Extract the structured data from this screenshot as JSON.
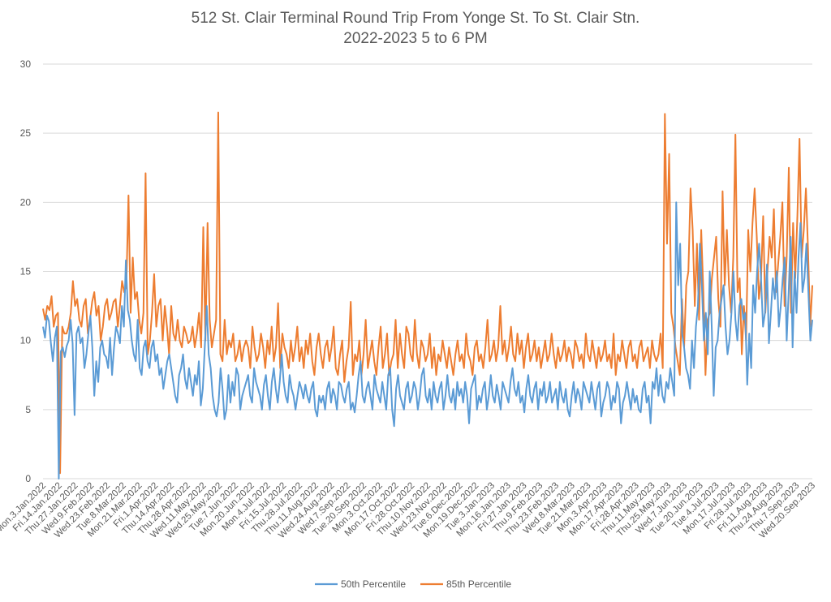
{
  "chart_data": {
    "type": "line",
    "title": "512 St. Clair Terminal Round Trip From Yonge St. To St. Clair Stn.",
    "subtitle": "2022-2023 5 to 6 PM",
    "ylim": [
      0,
      30
    ],
    "yticks": [
      0,
      5,
      10,
      15,
      20,
      25,
      30
    ],
    "grid": true,
    "legend_position": "bottom",
    "x_tick_labels": [
      "Mon.3.Jan.2022",
      "Fri.14.Jan.2022",
      "Thu.27.Jan.2022",
      "Wed.9.Feb.2022",
      "Wed.23.Feb.2022",
      "Tue.8.Mar.2022",
      "Mon.21.Mar.2022",
      "Fri.1.Apr.2022",
      "Thu.14.Apr.2022",
      "Thu.28.Apr.2022",
      "Wed.11.May.2022",
      "Wed.25.May.2022",
      "Tue.7.Jun.2022",
      "Mon.20.Jun.2022",
      "Mon.4.Jul.2022",
      "Fri.15.Jul.2022",
      "Thu.28.Jul.2022",
      "Thu.11.Aug.2022",
      "Wed.24.Aug.2022",
      "Wed.7.Sep.2022",
      "Tue.20.Sep.2022",
      "Mon.3.Oct.2022",
      "Mon.17.Oct.2022",
      "Fri.28.Oct.2022",
      "Thu.10.Nov.2022",
      "Wed.23.Nov.2022",
      "Tue.6.Dec.2022",
      "Mon.19.Dec.2022",
      "Tue.3.Jan.2023",
      "Mon.16.Jan.2023",
      "Fri.27.Jan.2023",
      "Thu.9.Feb.2023",
      "Thu.23.Feb.2023",
      "Wed.8.Mar.2023",
      "Tue.21.Mar.2023",
      "Mon.3.Apr.2023",
      "Mon.17.Apr.2023",
      "Fri.28.Apr.2023",
      "Thu.11.May.2023",
      "Thu.25.May.2023",
      "Wed.7.Jun.2023",
      "Tue.20.Jun.2023",
      "Tue.4.Jul.2023",
      "Mon.17.Jul.2023",
      "Fri.28.Jul.2023",
      "Fri.11.Aug.2023",
      "Thu.24.Aug.2023",
      "Thu.7.Sep.2023",
      "Wed.20.Sep.2023"
    ],
    "series": [
      {
        "name": "50th Percentile",
        "color": "#5B9BD5",
        "values": [
          11.0,
          10.2,
          11.8,
          11.4,
          9.8,
          8.5,
          10.2,
          11.0,
          0,
          9.2,
          9.5,
          8.8,
          9.6,
          10.0,
          11.5,
          9.8,
          4.6,
          10.5,
          11.0,
          9.8,
          10.2,
          8.0,
          9.0,
          10.5,
          11.8,
          9.5,
          6.0,
          8.5,
          7.0,
          9.5,
          10.0,
          9.0,
          8.8,
          8.0,
          10.2,
          7.5,
          9.5,
          11.0,
          10.5,
          9.8,
          12.5,
          11.0,
          15.8,
          12.2,
          11.5,
          10.0,
          9.0,
          8.5,
          11.5,
          8.0,
          7.5,
          9.5,
          10.0,
          8.5,
          8.0,
          9.5,
          10.0,
          8.5,
          9.0,
          7.5,
          8.0,
          6.5,
          7.5,
          8.5,
          9.0,
          8.0,
          7.0,
          6.0,
          5.5,
          7.5,
          8.0,
          9.0,
          7.2,
          6.5,
          8.0,
          7.0,
          6.0,
          7.5,
          6.8,
          8.5,
          5.3,
          6.5,
          9.5,
          12.5,
          9.0,
          8.0,
          6.0,
          5.0,
          4.5,
          5.5,
          8.0,
          6.5,
          4.3,
          5.0,
          7.5,
          5.5,
          7.0,
          6.0,
          8.0,
          7.5,
          5.0,
          6.0,
          6.5,
          7.0,
          7.5,
          6.0,
          5.5,
          8.0,
          7.0,
          6.5,
          6.0,
          5.0,
          6.8,
          7.5,
          6.0,
          5.0,
          7.0,
          8.0,
          6.5,
          5.5,
          7.0,
          9.0,
          7.0,
          6.0,
          5.5,
          7.5,
          6.5,
          6.0,
          5.0,
          6.0,
          7.0,
          6.5,
          5.8,
          6.8,
          6.0,
          5.5,
          6.5,
          7.0,
          5.0,
          4.5,
          6.0,
          5.5,
          6.0,
          5.0,
          6.5,
          7.0,
          5.5,
          6.5,
          6.0,
          5.0,
          7.0,
          6.8,
          6.0,
          5.5,
          6.5,
          7.0,
          5.0,
          5.5,
          4.8,
          6.0,
          7.5,
          8.5,
          6.0,
          5.5,
          6.5,
          7.0,
          6.0,
          5.0,
          7.5,
          6.5,
          6.0,
          5.5,
          7.0,
          6.0,
          5.0,
          7.5,
          8.0,
          5.0,
          3.8,
          6.5,
          7.5,
          6.0,
          5.5,
          5.0,
          6.5,
          7.0,
          5.5,
          6.0,
          7.0,
          6.5,
          5.0,
          6.0,
          7.5,
          8.0,
          6.0,
          5.5,
          6.5,
          5.0,
          7.0,
          6.0,
          5.5,
          6.5,
          7.0,
          5.0,
          6.0,
          7.5,
          6.0,
          5.5,
          6.5,
          5.0,
          7.0,
          6.0,
          6.5,
          5.5,
          7.0,
          6.0,
          4.0,
          6.5,
          7.0,
          7.5,
          5.0,
          6.0,
          5.5,
          6.5,
          7.0,
          5.0,
          6.0,
          7.5,
          6.0,
          5.5,
          6.8,
          6.0,
          5.0,
          7.0,
          6.5,
          6.0,
          5.5,
          7.0,
          8.0,
          6.5,
          6.0,
          7.0,
          5.5,
          6.0,
          4.8,
          6.5,
          7.5,
          6.0,
          5.5,
          6.5,
          7.0,
          5.0,
          6.5,
          6.0,
          7.0,
          5.5,
          6.0,
          7.0,
          5.5,
          6.0,
          6.5,
          5.0,
          7.0,
          6.0,
          5.5,
          6.5,
          5.0,
          4.5,
          6.0,
          7.0,
          5.5,
          6.5,
          6.0,
          5.0,
          7.0,
          6.5,
          6.0,
          5.5,
          7.0,
          6.0,
          5.0,
          6.5,
          7.0,
          4.5,
          5.5,
          6.0,
          7.0,
          6.5,
          5.0,
          6.0,
          5.5,
          7.0,
          6.5,
          4.0,
          5.5,
          6.0,
          7.0,
          6.0,
          5.0,
          6.5,
          5.5,
          6.0,
          5.0,
          4.8,
          6.5,
          7.0,
          5.5,
          6.0,
          4.0,
          7.0,
          6.5,
          8.0,
          6.0,
          7.5,
          6.0,
          5.5,
          7.0,
          6.5,
          8.0,
          7.0,
          6.0,
          20.0,
          14.0,
          17.0,
          10.5,
          9.5,
          8.0,
          7.5,
          6.5,
          10.0,
          8.0,
          11.0,
          12.5,
          17.0,
          14.0,
          10.0,
          12.0,
          9.0,
          15.0,
          11.0,
          6.0,
          9.5,
          10.0,
          12.0,
          13.0,
          14.0,
          11.0,
          9.0,
          10.0,
          12.0,
          15.0,
          11.5,
          10.0,
          12.5,
          13.0,
          11.5,
          12.0,
          6.8,
          10.5,
          8.0,
          14.0,
          12.0,
          15.0,
          17.0,
          14.5,
          11.0,
          12.0,
          15.5,
          9.8,
          12.0,
          14.5,
          13.0,
          15.0,
          11.0,
          12.5,
          14.5,
          16.0,
          10.0,
          13.5,
          17.5,
          9.5,
          15.0,
          12.0,
          16.0,
          18.5,
          13.5,
          14.5,
          17.0,
          13.5,
          10.0,
          11.5
        ]
      },
      {
        "name": "85th Percentile",
        "color": "#ED7D31",
        "values": [
          12.3,
          11.5,
          12.5,
          12.2,
          13.2,
          11.0,
          11.8,
          12.0,
          0.4,
          11.0,
          10.5,
          10.5,
          11.0,
          12.0,
          14.3,
          12.5,
          13.0,
          11.5,
          11.0,
          12.5,
          13.0,
          10.5,
          11.5,
          12.8,
          13.5,
          11.8,
          12.5,
          10.0,
          11.0,
          12.5,
          13.0,
          11.5,
          12.0,
          12.8,
          13.0,
          11.0,
          12.5,
          14.3,
          13.5,
          14.0,
          20.5,
          12.0,
          16.0,
          13.0,
          13.5,
          11.5,
          10.5,
          12.0,
          22.1,
          9.0,
          10.0,
          12.0,
          14.8,
          11.0,
          12.5,
          13.0,
          10.0,
          12.5,
          11.0,
          9.0,
          12.5,
          10.5,
          10.0,
          11.5,
          10.0,
          9.5,
          11.0,
          10.5,
          9.8,
          10.0,
          11.0,
          9.5,
          10.5,
          12.0,
          9.5,
          18.2,
          10.0,
          18.5,
          11.5,
          9.5,
          10.5,
          11.5,
          26.5,
          9.0,
          8.5,
          11.5,
          9.0,
          10.0,
          9.5,
          10.5,
          8.5,
          9.0,
          10.0,
          8.5,
          9.5,
          10.0,
          9.5,
          8.0,
          11.0,
          9.5,
          8.5,
          9.0,
          10.5,
          9.5,
          8.0,
          10.0,
          9.0,
          11.0,
          8.5,
          9.5,
          12.7,
          8.0,
          10.5,
          9.5,
          9.0,
          8.0,
          10.0,
          8.5,
          9.5,
          11.0,
          8.5,
          9.5,
          8.0,
          10.0,
          9.0,
          10.5,
          8.5,
          7.5,
          9.5,
          10.5,
          9.0,
          8.0,
          9.5,
          10.0,
          8.5,
          9.5,
          11.0,
          8.0,
          7.5,
          9.0,
          10.0,
          7.0,
          8.5,
          9.5,
          12.8,
          7.5,
          9.0,
          8.5,
          10.0,
          7.5,
          9.0,
          11.5,
          8.0,
          9.0,
          10.0,
          8.5,
          7.5,
          9.5,
          11.0,
          8.0,
          9.0,
          10.5,
          7.5,
          8.5,
          9.0,
          11.5,
          8.0,
          10.5,
          9.0,
          8.0,
          11.0,
          10.5,
          9.0,
          8.5,
          11.5,
          9.0,
          8.0,
          10.0,
          9.5,
          8.5,
          9.0,
          10.5,
          8.0,
          9.5,
          7.5,
          9.0,
          8.5,
          10.0,
          9.0,
          8.0,
          9.5,
          8.5,
          7.5,
          9.0,
          10.0,
          8.5,
          9.0,
          8.0,
          10.5,
          9.0,
          8.5,
          7.5,
          9.5,
          10.0,
          8.5,
          9.0,
          8.0,
          9.5,
          11.5,
          8.5,
          9.0,
          10.0,
          8.5,
          9.5,
          12.5,
          9.0,
          10.0,
          8.5,
          9.5,
          11.0,
          9.0,
          8.5,
          10.5,
          9.0,
          10.0,
          8.0,
          9.5,
          10.5,
          8.5,
          9.0,
          10.0,
          8.5,
          9.5,
          8.0,
          9.0,
          10.0,
          8.5,
          9.0,
          10.5,
          9.0,
          8.0,
          9.5,
          8.5,
          9.0,
          10.0,
          8.5,
          9.5,
          9.0,
          8.0,
          10.0,
          9.5,
          8.5,
          9.0,
          8.0,
          10.5,
          9.0,
          8.5,
          10.0,
          9.0,
          8.0,
          9.5,
          8.5,
          9.0,
          10.0,
          8.5,
          9.0,
          8.0,
          10.5,
          7.5,
          9.0,
          8.5,
          10.0,
          9.0,
          8.0,
          9.5,
          10.0,
          8.5,
          9.0,
          8.0,
          9.5,
          10.0,
          8.5,
          9.0,
          9.5,
          8.0,
          10.0,
          9.0,
          8.5,
          9.0,
          10.5,
          8.0,
          26.4,
          17.0,
          23.5,
          12.0,
          11.0,
          9.5,
          8.5,
          7.5,
          13.0,
          9.5,
          14.0,
          15.0,
          21.0,
          18.0,
          12.5,
          17.0,
          11.5,
          18.0,
          13.5,
          7.5,
          11.5,
          12.0,
          14.5,
          16.0,
          17.5,
          13.0,
          11.0,
          20.8,
          14.0,
          18.0,
          14.0,
          12.0,
          16.0,
          24.9,
          13.5,
          14.5,
          9.0,
          12.5,
          10.0,
          18.0,
          15.0,
          18.5,
          21.0,
          17.5,
          13.0,
          14.5,
          19.0,
          12.0,
          15.0,
          17.5,
          16.0,
          19.5,
          13.5,
          15.5,
          17.5,
          20.0,
          12.5,
          16.0,
          22.5,
          12.0,
          18.5,
          14.5,
          19.0,
          24.6,
          16.0,
          18.0,
          21.0,
          16.5,
          11.0,
          14.0
        ]
      }
    ]
  }
}
